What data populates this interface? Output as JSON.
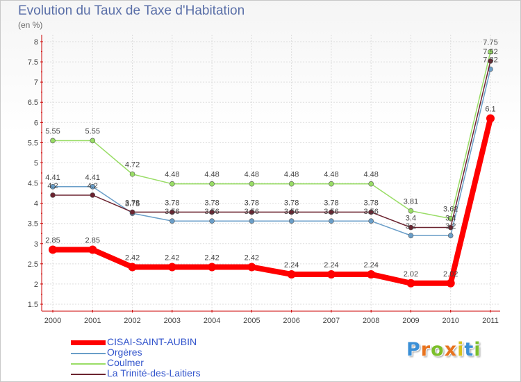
{
  "chart_data": {
    "type": "line",
    "title": "Evolution du Taux de Taxe d'Habitation",
    "subtitle": "(en %)",
    "x": [
      "2000",
      "2001",
      "2002",
      "2003",
      "2004",
      "2005",
      "2006",
      "2007",
      "2008",
      "2009",
      "2010",
      "2011"
    ],
    "ylim": [
      1.5,
      8
    ],
    "yticks": [
      "1.5",
      "2",
      "2.5",
      "3",
      "3.5",
      "4",
      "4.5",
      "5",
      "5.5",
      "6",
      "6.5",
      "7",
      "7.5",
      "8"
    ],
    "grid": true,
    "legend_position": "bottom-left",
    "series": [
      {
        "name": "CISAI-SAINT-AUBIN",
        "color": "#ff0000",
        "values": [
          2.85,
          2.85,
          2.42,
          2.42,
          2.42,
          2.42,
          2.24,
          2.24,
          2.24,
          2.02,
          2.02,
          6.1
        ],
        "labels": [
          "2.85",
          "2.85",
          "2.42",
          "2.42",
          "2.42",
          "2.42",
          "2.24",
          "2.24",
          "2.24",
          "2.02",
          "2.02",
          "6.1"
        ]
      },
      {
        "name": "Orgères",
        "color": "#6a9ec8",
        "values": [
          4.41,
          4.41,
          3.75,
          3.56,
          3.56,
          3.56,
          3.56,
          3.56,
          3.56,
          3.2,
          3.2,
          7.32
        ],
        "labels": [
          "4.41",
          "4.41",
          "3.75",
          "3.56",
          "3.56",
          "3.56",
          "3.56",
          "3.56",
          "3.56",
          "3.2",
          "3.2",
          "7.32"
        ]
      },
      {
        "name": "Coulmer",
        "color": "#99dd66",
        "values": [
          5.55,
          5.55,
          4.72,
          4.48,
          4.48,
          4.48,
          4.48,
          4.48,
          4.48,
          3.81,
          3.62,
          7.75
        ],
        "labels": [
          "5.55",
          "5.55",
          "4.72",
          "4.48",
          "4.48",
          "4.48",
          "4.48",
          "4.48",
          "4.48",
          "3.81",
          "3.62",
          "7.75"
        ]
      },
      {
        "name": "La Trinité-des-Laitiers",
        "color": "#6b2430",
        "values": [
          4.2,
          4.2,
          3.78,
          3.78,
          3.78,
          3.78,
          3.78,
          3.78,
          3.78,
          3.4,
          3.4,
          7.52
        ],
        "labels": [
          "4.2",
          "4.2",
          "3.78",
          "3.78",
          "3.78",
          "3.78",
          "3.78",
          "3.78",
          "3.78",
          "3.4",
          "3.4",
          "7.52"
        ]
      }
    ]
  },
  "branding": {
    "logo_letters": [
      "P",
      "r",
      "o",
      "x",
      "i",
      "t",
      "i"
    ],
    "logo_colors": [
      "#3a8fd6",
      "#e8731e",
      "#7bbf2a",
      "#e8731e",
      "#d6c21e",
      "#3a8fd6",
      "#7bbf2a"
    ]
  }
}
